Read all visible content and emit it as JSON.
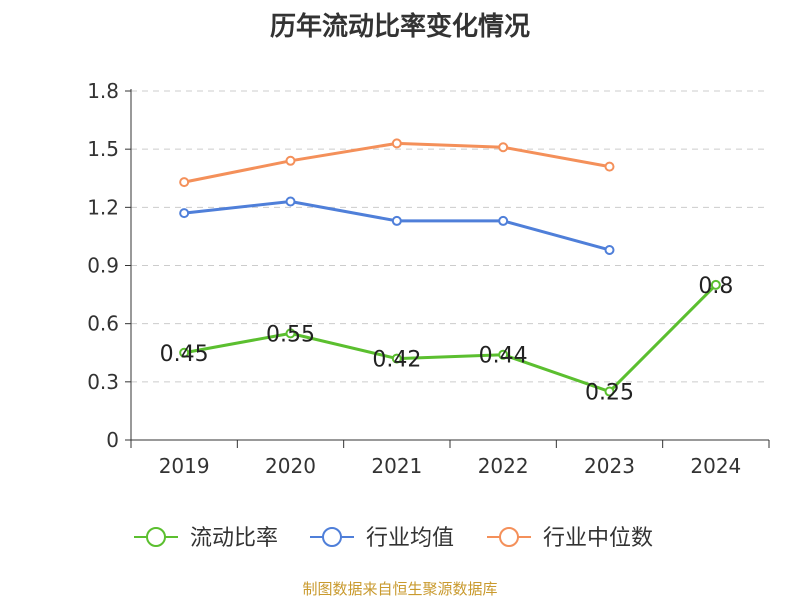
{
  "chart_data": {
    "type": "line",
    "title": "历年流动比率变化情况",
    "categories": [
      "2019",
      "2020",
      "2021",
      "2022",
      "2023",
      "2024"
    ],
    "y_ticks": [
      "0",
      "0.3",
      "0.6",
      "0.9",
      "1.2",
      "1.5",
      "1.8"
    ],
    "ylim": [
      0,
      1.8
    ],
    "grid": true,
    "legend_position": "bottom",
    "series": [
      {
        "name": "流动比率",
        "color": "#5bbf2f",
        "values": [
          0.45,
          0.55,
          0.42,
          0.44,
          0.25,
          0.8
        ],
        "show_labels": true
      },
      {
        "name": "行业均值",
        "color": "#4f7fd9",
        "values": [
          1.17,
          1.23,
          1.13,
          1.13,
          0.98,
          null
        ],
        "show_labels": false
      },
      {
        "name": "行业中位数",
        "color": "#f4905a",
        "values": [
          1.33,
          1.44,
          1.53,
          1.51,
          1.41,
          null
        ],
        "show_labels": false
      }
    ],
    "source_note": "制图数据来自恒生聚源数据库"
  }
}
